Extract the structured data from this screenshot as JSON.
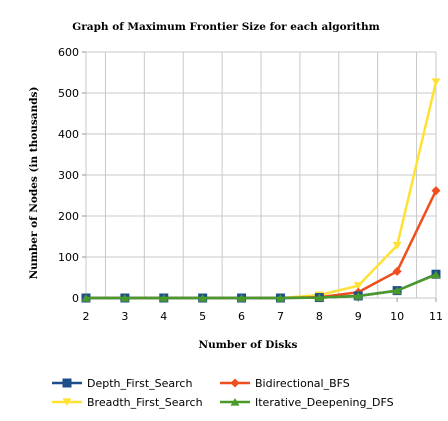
{
  "chart_data": {
    "type": "line",
    "title": "Graph of Maximum Frontier Size for each algorithm",
    "xlabel": "Number of Disks",
    "ylabel": "Number of Nodes (in thousands)",
    "x": [
      2,
      3,
      4,
      5,
      6,
      7,
      8,
      9,
      10,
      11
    ],
    "xlim": [
      2,
      11
    ],
    "ylim": [
      0,
      600
    ],
    "yticks": [
      0,
      100,
      200,
      300,
      400,
      500,
      600
    ],
    "grid": true,
    "legend_position": "bottom",
    "series": [
      {
        "name": "Depth_First_Search",
        "color": "#1f4e8c",
        "marker": "square",
        "values": [
          0,
          0,
          0,
          0,
          0,
          0,
          1,
          5,
          18,
          58
        ]
      },
      {
        "name": "Breadth_First_Search",
        "color": "#ffe135",
        "marker": "triangle-down",
        "values": [
          0,
          0,
          0,
          0,
          0,
          0,
          7,
          30,
          128,
          527
        ]
      },
      {
        "name": "Bidirectional_BFS",
        "color": "#f04e1c",
        "marker": "diamond",
        "values": [
          0,
          0,
          0,
          0,
          0,
          0,
          2,
          14,
          65,
          262
        ]
      },
      {
        "name": "Iterative_Deepening_DFS",
        "color": "#4a9a2a",
        "marker": "triangle-up",
        "values": [
          0,
          0,
          0,
          0,
          0,
          0,
          1,
          5,
          18,
          57
        ]
      }
    ]
  }
}
